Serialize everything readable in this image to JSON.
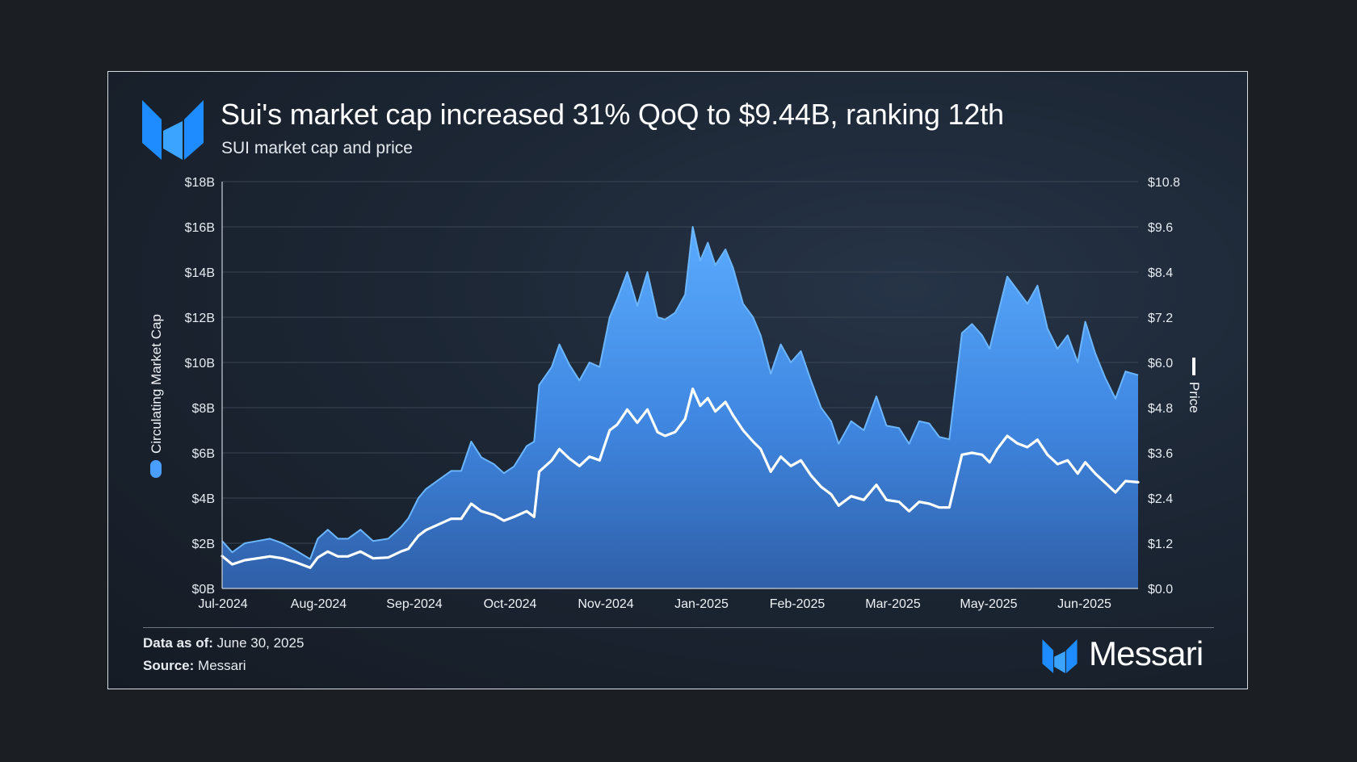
{
  "title": "Sui's market cap increased 31% QoQ to $9.44B, ranking 12th",
  "subtitle": "SUI market cap and price",
  "footer": {
    "data_as_of_label": "Data as of:",
    "data_as_of_value": "June 30, 2025",
    "source_label": "Source:",
    "source_value": "Messari",
    "logo_text": "Messari"
  },
  "chart_data": {
    "type": "area",
    "xlabel": "",
    "x_ticks": [
      "Jul-2024",
      "Aug-2024",
      "Sep-2024",
      "Oct-2024",
      "Nov-2024",
      "Jan-2025",
      "Feb-2025",
      "Mar-2025",
      "May-2025",
      "Jun-2025"
    ],
    "x_range": [
      "2024-07-01",
      "2025-06-30"
    ],
    "left_axis": {
      "label": "Circulating Market Cap",
      "unit": "USD billions",
      "ylim": [
        0,
        18
      ],
      "tick_labels": [
        "$0B",
        "$2B",
        "$4B",
        "$6B",
        "$8B",
        "$10B",
        "$12B",
        "$14B",
        "$16B",
        "$18B"
      ]
    },
    "right_axis": {
      "label": "Price",
      "unit": "USD",
      "ylim": [
        0,
        10.8
      ],
      "tick_labels": [
        "$0.0",
        "$1.2",
        "$2.4",
        "$3.6",
        "$4.8",
        "$6.0",
        "$7.2",
        "$8.4",
        "$9.6",
        "$10.8"
      ]
    },
    "grid": true,
    "series": [
      {
        "name": "Circulating Market Cap",
        "axis": "left",
        "style": "area",
        "color": "#4a9eff",
        "points": [
          [
            "2024-07-01",
            2.1
          ],
          [
            "2024-07-05",
            1.6
          ],
          [
            "2024-07-10",
            2.0
          ],
          [
            "2024-07-15",
            2.1
          ],
          [
            "2024-07-20",
            2.2
          ],
          [
            "2024-07-25",
            2.0
          ],
          [
            "2024-07-30",
            1.7
          ],
          [
            "2024-08-05",
            1.3
          ],
          [
            "2024-08-08",
            2.2
          ],
          [
            "2024-08-12",
            2.6
          ],
          [
            "2024-08-16",
            2.2
          ],
          [
            "2024-08-20",
            2.2
          ],
          [
            "2024-08-25",
            2.6
          ],
          [
            "2024-08-30",
            2.1
          ],
          [
            "2024-09-05",
            2.2
          ],
          [
            "2024-09-10",
            2.7
          ],
          [
            "2024-09-13",
            3.1
          ],
          [
            "2024-09-17",
            4.0
          ],
          [
            "2024-09-20",
            4.4
          ],
          [
            "2024-09-25",
            4.8
          ],
          [
            "2024-09-30",
            5.2
          ],
          [
            "2024-10-04",
            5.2
          ],
          [
            "2024-10-08",
            6.5
          ],
          [
            "2024-10-12",
            5.8
          ],
          [
            "2024-10-17",
            5.5
          ],
          [
            "2024-10-21",
            5.1
          ],
          [
            "2024-10-25",
            5.4
          ],
          [
            "2024-10-30",
            6.3
          ],
          [
            "2024-11-02",
            6.5
          ],
          [
            "2024-11-04",
            9.0
          ],
          [
            "2024-11-09",
            9.8
          ],
          [
            "2024-11-12",
            10.8
          ],
          [
            "2024-11-16",
            9.9
          ],
          [
            "2024-11-20",
            9.2
          ],
          [
            "2024-11-24",
            10.0
          ],
          [
            "2024-11-28",
            9.8
          ],
          [
            "2024-12-02",
            12.0
          ],
          [
            "2024-12-05",
            12.8
          ],
          [
            "2024-12-09",
            14.0
          ],
          [
            "2024-12-13",
            12.5
          ],
          [
            "2024-12-17",
            14.0
          ],
          [
            "2024-12-21",
            12.0
          ],
          [
            "2024-12-24",
            11.9
          ],
          [
            "2024-12-28",
            12.2
          ],
          [
            "2025-01-01",
            13.0
          ],
          [
            "2025-01-04",
            16.0
          ],
          [
            "2025-01-07",
            14.5
          ],
          [
            "2025-01-10",
            15.3
          ],
          [
            "2025-01-13",
            14.3
          ],
          [
            "2025-01-17",
            15.0
          ],
          [
            "2025-01-20",
            14.2
          ],
          [
            "2025-01-24",
            12.6
          ],
          [
            "2025-01-28",
            12.0
          ],
          [
            "2025-01-31",
            11.2
          ],
          [
            "2025-02-04",
            9.5
          ],
          [
            "2025-02-08",
            10.8
          ],
          [
            "2025-02-12",
            10.0
          ],
          [
            "2025-02-16",
            10.5
          ],
          [
            "2025-02-20",
            9.2
          ],
          [
            "2025-02-24",
            8.0
          ],
          [
            "2025-02-28",
            7.4
          ],
          [
            "2025-03-03",
            6.4
          ],
          [
            "2025-03-08",
            7.4
          ],
          [
            "2025-03-13",
            7.0
          ],
          [
            "2025-03-18",
            8.5
          ],
          [
            "2025-03-22",
            7.2
          ],
          [
            "2025-03-27",
            7.1
          ],
          [
            "2025-03-31",
            6.4
          ],
          [
            "2025-04-04",
            7.4
          ],
          [
            "2025-04-08",
            7.3
          ],
          [
            "2025-04-12",
            6.7
          ],
          [
            "2025-04-16",
            6.6
          ],
          [
            "2025-04-21",
            11.3
          ],
          [
            "2025-04-25",
            11.7
          ],
          [
            "2025-04-29",
            11.2
          ],
          [
            "2025-05-02",
            10.6
          ],
          [
            "2025-05-05",
            12.0
          ],
          [
            "2025-05-09",
            13.8
          ],
          [
            "2025-05-13",
            13.2
          ],
          [
            "2025-05-17",
            12.6
          ],
          [
            "2025-05-21",
            13.4
          ],
          [
            "2025-05-25",
            11.5
          ],
          [
            "2025-05-29",
            10.6
          ],
          [
            "2025-06-02",
            11.2
          ],
          [
            "2025-06-06",
            10.0
          ],
          [
            "2025-06-09",
            11.8
          ],
          [
            "2025-06-13",
            10.4
          ],
          [
            "2025-06-17",
            9.3
          ],
          [
            "2025-06-21",
            8.4
          ],
          [
            "2025-06-25",
            9.6
          ],
          [
            "2025-06-30",
            9.44
          ]
        ]
      },
      {
        "name": "Price",
        "axis": "right",
        "style": "line",
        "color": "#ffffff",
        "points": [
          [
            "2024-07-01",
            0.86
          ],
          [
            "2024-07-05",
            0.64
          ],
          [
            "2024-07-10",
            0.75
          ],
          [
            "2024-07-15",
            0.8
          ],
          [
            "2024-07-20",
            0.85
          ],
          [
            "2024-07-25",
            0.8
          ],
          [
            "2024-07-30",
            0.7
          ],
          [
            "2024-08-05",
            0.55
          ],
          [
            "2024-08-08",
            0.82
          ],
          [
            "2024-08-12",
            0.98
          ],
          [
            "2024-08-16",
            0.85
          ],
          [
            "2024-08-20",
            0.85
          ],
          [
            "2024-08-25",
            0.98
          ],
          [
            "2024-08-30",
            0.8
          ],
          [
            "2024-09-05",
            0.82
          ],
          [
            "2024-09-10",
            0.98
          ],
          [
            "2024-09-13",
            1.05
          ],
          [
            "2024-09-17",
            1.4
          ],
          [
            "2024-09-20",
            1.55
          ],
          [
            "2024-09-25",
            1.7
          ],
          [
            "2024-09-30",
            1.85
          ],
          [
            "2024-10-04",
            1.85
          ],
          [
            "2024-10-08",
            2.25
          ],
          [
            "2024-10-12",
            2.05
          ],
          [
            "2024-10-17",
            1.95
          ],
          [
            "2024-10-21",
            1.8
          ],
          [
            "2024-10-25",
            1.9
          ],
          [
            "2024-10-30",
            2.05
          ],
          [
            "2024-11-02",
            1.9
          ],
          [
            "2024-11-04",
            3.1
          ],
          [
            "2024-11-09",
            3.4
          ],
          [
            "2024-11-12",
            3.7
          ],
          [
            "2024-11-16",
            3.45
          ],
          [
            "2024-11-20",
            3.25
          ],
          [
            "2024-11-24",
            3.5
          ],
          [
            "2024-11-28",
            3.4
          ],
          [
            "2024-12-02",
            4.2
          ],
          [
            "2024-12-05",
            4.35
          ],
          [
            "2024-12-09",
            4.75
          ],
          [
            "2024-12-13",
            4.4
          ],
          [
            "2024-12-17",
            4.75
          ],
          [
            "2024-12-21",
            4.15
          ],
          [
            "2024-12-24",
            4.05
          ],
          [
            "2024-12-28",
            4.15
          ],
          [
            "2025-01-01",
            4.5
          ],
          [
            "2025-01-04",
            5.3
          ],
          [
            "2025-01-07",
            4.85
          ],
          [
            "2025-01-10",
            5.05
          ],
          [
            "2025-01-13",
            4.7
          ],
          [
            "2025-01-17",
            4.95
          ],
          [
            "2025-01-20",
            4.6
          ],
          [
            "2025-01-24",
            4.2
          ],
          [
            "2025-01-28",
            3.9
          ],
          [
            "2025-01-31",
            3.7
          ],
          [
            "2025-02-04",
            3.1
          ],
          [
            "2025-02-08",
            3.5
          ],
          [
            "2025-02-12",
            3.25
          ],
          [
            "2025-02-16",
            3.4
          ],
          [
            "2025-02-20",
            3.0
          ],
          [
            "2025-02-24",
            2.7
          ],
          [
            "2025-02-28",
            2.5
          ],
          [
            "2025-03-03",
            2.2
          ],
          [
            "2025-03-08",
            2.45
          ],
          [
            "2025-03-13",
            2.35
          ],
          [
            "2025-03-18",
            2.75
          ],
          [
            "2025-03-22",
            2.35
          ],
          [
            "2025-03-27",
            2.3
          ],
          [
            "2025-03-31",
            2.05
          ],
          [
            "2025-04-04",
            2.3
          ],
          [
            "2025-04-08",
            2.25
          ],
          [
            "2025-04-12",
            2.15
          ],
          [
            "2025-04-16",
            2.15
          ],
          [
            "2025-04-21",
            3.55
          ],
          [
            "2025-04-25",
            3.6
          ],
          [
            "2025-04-29",
            3.55
          ],
          [
            "2025-05-02",
            3.35
          ],
          [
            "2025-05-05",
            3.7
          ],
          [
            "2025-05-09",
            4.05
          ],
          [
            "2025-05-13",
            3.85
          ],
          [
            "2025-05-17",
            3.75
          ],
          [
            "2025-05-21",
            3.95
          ],
          [
            "2025-05-25",
            3.55
          ],
          [
            "2025-05-29",
            3.3
          ],
          [
            "2025-06-02",
            3.4
          ],
          [
            "2025-06-06",
            3.05
          ],
          [
            "2025-06-09",
            3.35
          ],
          [
            "2025-06-13",
            3.05
          ],
          [
            "2025-06-17",
            2.8
          ],
          [
            "2025-06-21",
            2.55
          ],
          [
            "2025-06-25",
            2.85
          ],
          [
            "2025-06-30",
            2.82
          ]
        ]
      }
    ]
  }
}
